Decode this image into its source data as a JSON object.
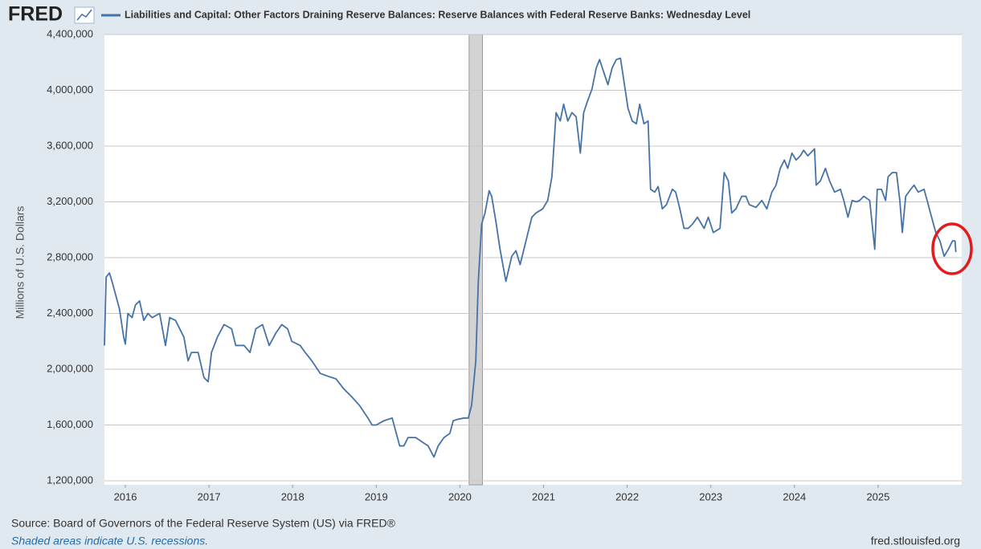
{
  "header": {
    "logo": "FRED"
  },
  "chart_data": {
    "type": "line",
    "y_label": "Millions of U.S. Dollars",
    "x": [
      2015.75,
      2015.77,
      2015.81,
      2015.84,
      2015.89,
      2015.93,
      2015.98,
      2016.0,
      2016.03,
      2016.08,
      2016.12,
      2016.17,
      2016.22,
      2016.27,
      2016.32,
      2016.41,
      2016.48,
      2016.53,
      2016.6,
      2016.7,
      2016.75,
      2016.79,
      2016.87,
      2016.94,
      2016.99,
      2017.03,
      2017.1,
      2017.18,
      2017.27,
      2017.32,
      2017.42,
      2017.49,
      2017.56,
      2017.64,
      2017.72,
      2017.8,
      2017.87,
      2017.94,
      2017.99,
      2018.09,
      2018.15,
      2018.23,
      2018.33,
      2018.42,
      2018.52,
      2018.61,
      2018.71,
      2018.8,
      2018.9,
      2018.95,
      2019.0,
      2019.09,
      2019.19,
      2019.28,
      2019.33,
      2019.38,
      2019.47,
      2019.57,
      2019.62,
      2019.69,
      2019.74,
      2019.81,
      2019.88,
      2019.92,
      2019.97,
      2020.05,
      2020.1,
      2020.14,
      2020.19,
      2020.22,
      2020.26,
      2020.3,
      2020.35,
      2020.38,
      2020.43,
      2020.48,
      2020.55,
      2020.62,
      2020.67,
      2020.72,
      2020.79,
      2020.86,
      2020.91,
      2020.99,
      2021.05,
      2021.1,
      2021.15,
      2021.2,
      2021.24,
      2021.29,
      2021.34,
      2021.39,
      2021.44,
      2021.48,
      2021.53,
      2021.58,
      2021.63,
      2021.67,
      2021.72,
      2021.77,
      2021.82,
      2021.87,
      2021.92,
      2021.96,
      2022.01,
      2022.06,
      2022.11,
      2022.15,
      2022.2,
      2022.25,
      2022.28,
      2022.33,
      2022.37,
      2022.42,
      2022.47,
      2022.54,
      2022.58,
      2022.63,
      2022.68,
      2022.73,
      2022.78,
      2022.84,
      2022.92,
      2022.97,
      2023.03,
      2023.11,
      2023.16,
      2023.21,
      2023.25,
      2023.3,
      2023.37,
      2023.42,
      2023.46,
      2023.54,
      2023.61,
      2023.67,
      2023.73,
      2023.78,
      2023.83,
      2023.88,
      2023.92,
      2023.97,
      2024.02,
      2024.07,
      2024.11,
      2024.16,
      2024.24,
      2024.26,
      2024.31,
      2024.37,
      2024.42,
      2024.48,
      2024.55,
      2024.59,
      2024.64,
      2024.69,
      2024.74,
      2024.78,
      2024.83,
      2024.9,
      2024.96,
      2024.99,
      2025.04,
      2025.09,
      2025.12,
      2025.17,
      2025.22,
      2025.26,
      2025.29,
      2025.33,
      2025.39,
      2025.43,
      2025.48,
      2025.55,
      2025.6,
      2025.64,
      2025.69,
      2025.74,
      2025.79,
      2025.84,
      2025.89,
      2025.92,
      2025.93
    ],
    "series": [
      {
        "name": "Liabilities and Capital: Other Factors Draining Reserve Balances: Reserve Balances with Federal Reserve Banks: Wednesday Level",
        "color": "#4572a7",
        "values": [
          2170000,
          2660000,
          2690000,
          2630000,
          2520000,
          2430000,
          2230000,
          2180000,
          2400000,
          2370000,
          2460000,
          2490000,
          2350000,
          2400000,
          2370000,
          2400000,
          2170000,
          2370000,
          2350000,
          2230000,
          2060000,
          2120000,
          2120000,
          1940000,
          1910000,
          2120000,
          2230000,
          2320000,
          2290000,
          2170000,
          2170000,
          2120000,
          2290000,
          2320000,
          2170000,
          2260000,
          2320000,
          2290000,
          2200000,
          2170000,
          2120000,
          2060000,
          1970000,
          1950000,
          1930000,
          1860000,
          1800000,
          1740000,
          1650000,
          1600000,
          1600000,
          1630000,
          1650000,
          1450000,
          1450000,
          1510000,
          1510000,
          1470000,
          1450000,
          1370000,
          1450000,
          1510000,
          1540000,
          1630000,
          1640000,
          1650000,
          1650000,
          1740000,
          2060000,
          2630000,
          3040000,
          3120000,
          3280000,
          3240000,
          3060000,
          2860000,
          2630000,
          2810000,
          2850000,
          2750000,
          2920000,
          3090000,
          3120000,
          3150000,
          3210000,
          3380000,
          3840000,
          3780000,
          3900000,
          3780000,
          3840000,
          3810000,
          3550000,
          3840000,
          3930000,
          4010000,
          4160000,
          4220000,
          4130000,
          4040000,
          4160000,
          4220000,
          4230000,
          4070000,
          3870000,
          3780000,
          3760000,
          3900000,
          3760000,
          3780000,
          3290000,
          3270000,
          3310000,
          3150000,
          3180000,
          3290000,
          3270000,
          3150000,
          3010000,
          3010000,
          3040000,
          3090000,
          3010000,
          3090000,
          2980000,
          3010000,
          3410000,
          3350000,
          3120000,
          3150000,
          3240000,
          3240000,
          3180000,
          3160000,
          3210000,
          3150000,
          3270000,
          3320000,
          3440000,
          3500000,
          3440000,
          3550000,
          3500000,
          3530000,
          3570000,
          3530000,
          3580000,
          3320000,
          3350000,
          3440000,
          3350000,
          3270000,
          3290000,
          3210000,
          3090000,
          3210000,
          3200000,
          3210000,
          3240000,
          3210000,
          2860000,
          3290000,
          3290000,
          3210000,
          3380000,
          3410000,
          3410000,
          3210000,
          2980000,
          3240000,
          3290000,
          3320000,
          3270000,
          3290000,
          3180000,
          3090000,
          2980000,
          2920000,
          2810000,
          2860000,
          2920000,
          2920000,
          2840000
        ]
      }
    ],
    "xlim": [
      2015.75,
      2026.0
    ],
    "xticks": [
      2016,
      2017,
      2018,
      2019,
      2020,
      2021,
      2022,
      2023,
      2024,
      2025
    ],
    "ylim": [
      1200000,
      4400000
    ],
    "yticks": [
      {
        "value": 1200000,
        "label": "1,200,000"
      },
      {
        "value": 1600000,
        "label": "1,600,000"
      },
      {
        "value": 2000000,
        "label": "2,000,000"
      },
      {
        "value": 2400000,
        "label": "2,400,000"
      },
      {
        "value": 2800000,
        "label": "2,800,000"
      },
      {
        "value": 3200000,
        "label": "3,200,000"
      },
      {
        "value": 3600000,
        "label": "3,600,000"
      },
      {
        "value": 4000000,
        "label": "4,000,000"
      },
      {
        "value": 4400000,
        "label": "4,400,000"
      }
    ],
    "grid": true,
    "recessions": [
      [
        2020.11,
        2020.27
      ]
    ]
  },
  "footer": {
    "source": "Source: Board of Governors of the Federal Reserve System (US) via FRED®",
    "note": "Shaded areas indicate U.S. recessions.",
    "site": "fred.stlouisfed.org"
  }
}
